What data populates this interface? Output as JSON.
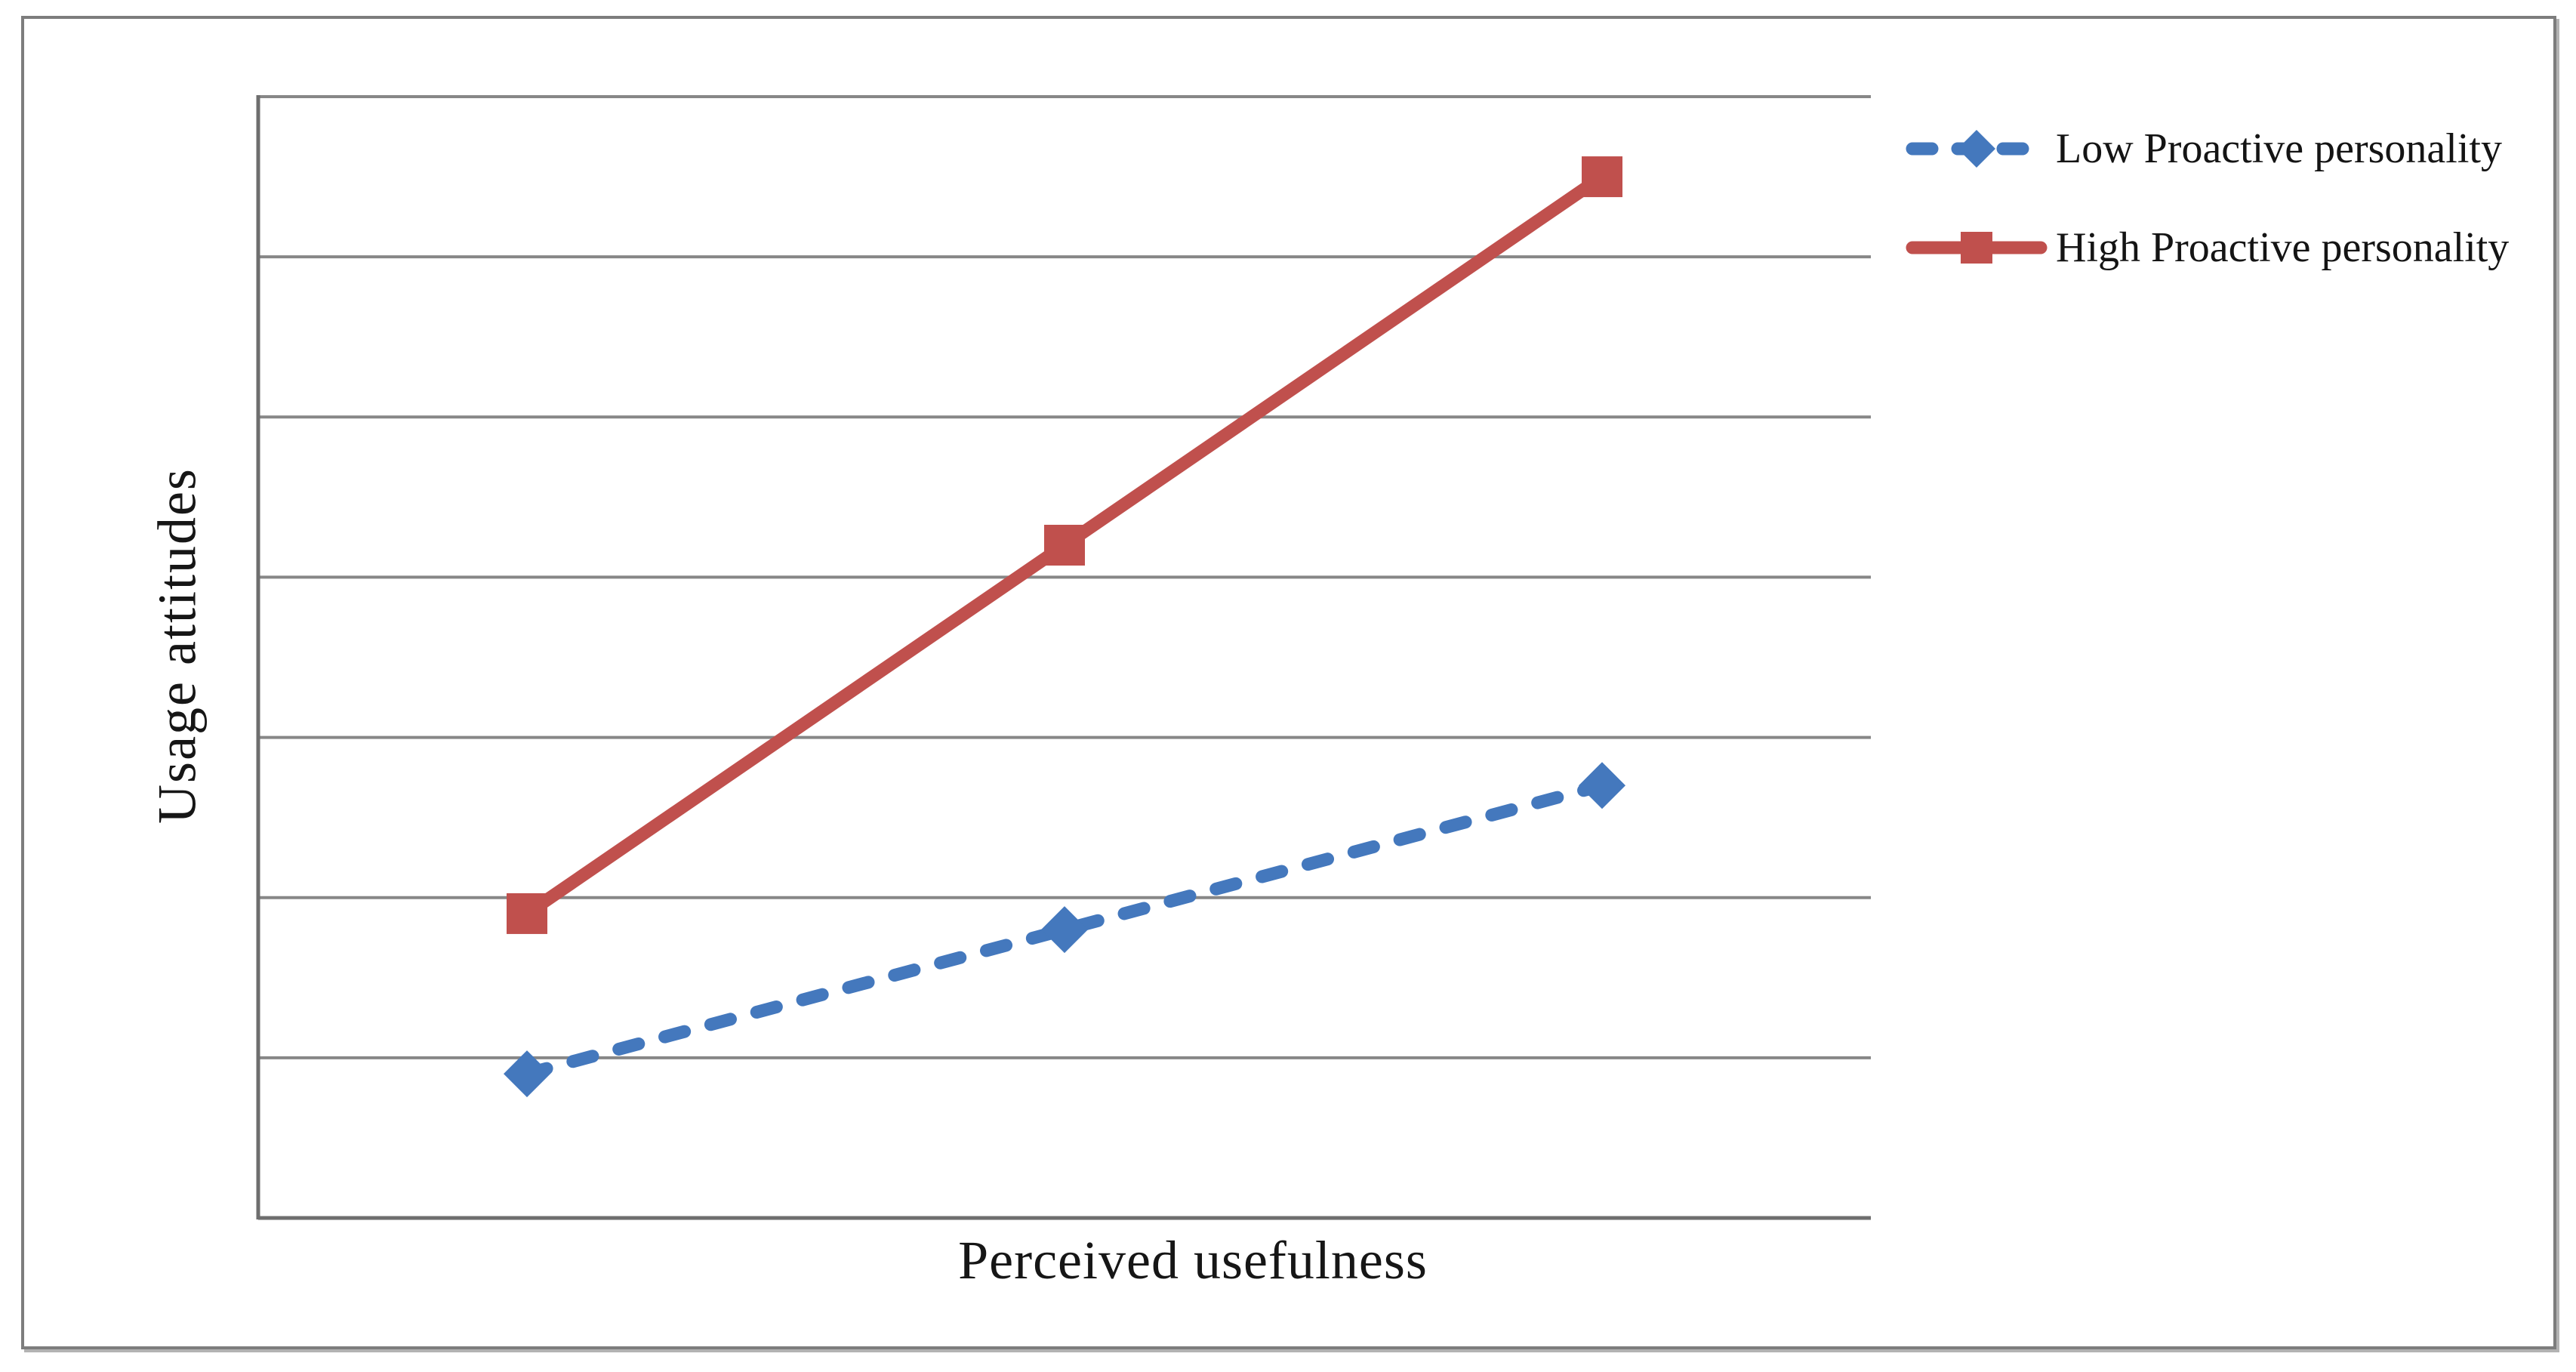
{
  "figure": {
    "x_axis_title": "Perceived usefulness",
    "y_axis_title": "Usage attitudes"
  },
  "legend": {
    "position": "outside-top-right",
    "items": [
      {
        "label": "Low Proactive personality",
        "marker": "diamond",
        "line_style": "dashed",
        "color": "#4478BD"
      },
      {
        "label": "High Proactive personality",
        "marker": "square",
        "line_style": "solid",
        "color": "#C0504D"
      }
    ]
  },
  "chart_data": {
    "type": "line",
    "title": "",
    "xlabel": "Perceived usefulness",
    "ylabel": "Usage attitudes",
    "x": [
      1,
      2,
      3
    ],
    "x_tick_labels": [],
    "y_tick_labels": [],
    "ylim_gridline_units": [
      0,
      7
    ],
    "gridlines": {
      "horizontal": true,
      "horizontal_line_count_above_axis": 7,
      "vertical": false
    },
    "legend_position": "outside-top-right",
    "series": [
      {
        "name": "Low Proactive personality",
        "color": "#4478BD",
        "line_style": "dashed",
        "marker": "diamond",
        "values_gridline_units": [
          0.9,
          1.8,
          2.7
        ]
      },
      {
        "name": "High Proactive personality",
        "color": "#C0504D",
        "line_style": "solid",
        "marker": "square",
        "values_gridline_units": [
          1.9,
          4.2,
          6.5
        ]
      }
    ]
  },
  "colors": {
    "gridline": "#878787",
    "axis": "#6E6E6E",
    "figure_border": "#7D7D7D",
    "text": "#141414",
    "background": "#FFFFFF"
  }
}
